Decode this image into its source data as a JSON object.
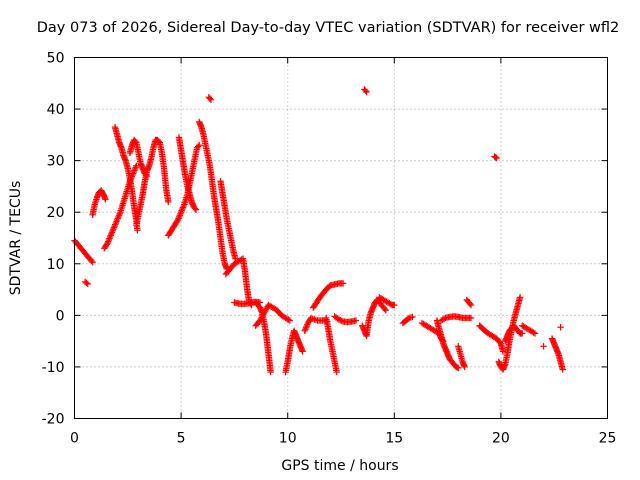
{
  "chart_data": {
    "type": "scatter",
    "title": "Day 073 of 2026, Sidereal Day-to-day VTEC variation (SDTVAR) for receiver wfl2",
    "xlabel": "GPS time / hours",
    "ylabel": "SDTVAR / TECUs",
    "xlim": [
      0,
      25
    ],
    "ylim": [
      -20,
      50
    ],
    "xticks": [
      0,
      5,
      10,
      15,
      20,
      25
    ],
    "yticks": [
      -20,
      -10,
      0,
      10,
      20,
      30,
      40,
      50
    ],
    "grid": true,
    "marker": "+",
    "series_color": "#ff0000",
    "segments": [
      [
        [
          0.0,
          14.5
        ],
        [
          0.15,
          13.8
        ],
        [
          0.3,
          13.0
        ],
        [
          0.45,
          12.3
        ],
        [
          0.6,
          11.5
        ],
        [
          0.75,
          10.8
        ],
        [
          0.85,
          10.3
        ]
      ],
      [
        [
          0.5,
          6.5
        ],
        [
          0.62,
          6.1
        ]
      ],
      [
        [
          0.85,
          19.5
        ],
        [
          0.95,
          21.5
        ],
        [
          1.05,
          22.8
        ],
        [
          1.15,
          23.8
        ],
        [
          1.25,
          24.2
        ],
        [
          1.35,
          23.5
        ],
        [
          1.45,
          22.5
        ]
      ],
      [
        [
          1.4,
          13.0
        ],
        [
          1.55,
          14.0
        ],
        [
          1.7,
          15.5
        ],
        [
          1.85,
          17.0
        ],
        [
          2.0,
          18.5
        ],
        [
          2.15,
          20.0
        ],
        [
          2.3,
          22.0
        ],
        [
          2.45,
          24.0
        ],
        [
          2.6,
          26.0
        ],
        [
          2.75,
          27.5
        ],
        [
          2.9,
          29.0
        ]
      ],
      [
        [
          1.9,
          36.5
        ],
        [
          2.0,
          35.0
        ],
        [
          2.1,
          33.5
        ],
        [
          2.2,
          32.5
        ],
        [
          2.3,
          31.0
        ],
        [
          2.4,
          30.0
        ],
        [
          2.5,
          28.5
        ],
        [
          2.6,
          26.5
        ],
        [
          2.7,
          24.0
        ],
        [
          2.8,
          21.0
        ],
        [
          2.9,
          18.5
        ],
        [
          2.95,
          16.5
        ]
      ],
      [
        [
          2.9,
          17.5
        ],
        [
          3.0,
          19.5
        ],
        [
          3.1,
          21.5
        ],
        [
          3.2,
          23.5
        ],
        [
          3.3,
          26.0
        ],
        [
          3.4,
          28.0
        ],
        [
          3.5,
          29.0
        ],
        [
          3.6,
          30.5
        ],
        [
          3.7,
          32.5
        ],
        [
          3.8,
          34.0
        ],
        [
          3.9,
          34.0
        ],
        [
          4.0,
          33.5
        ],
        [
          4.1,
          31.5
        ],
        [
          4.2,
          28.5
        ],
        [
          4.3,
          24.5
        ],
        [
          4.4,
          22.0
        ]
      ],
      [
        [
          2.6,
          31.5
        ],
        [
          2.7,
          33.0
        ],
        [
          2.8,
          34.0
        ],
        [
          2.9,
          33.5
        ],
        [
          3.0,
          31.5
        ],
        [
          3.1,
          29.5
        ],
        [
          3.2,
          28.5
        ],
        [
          3.3,
          27.5
        ],
        [
          3.4,
          27.0
        ]
      ],
      [
        [
          4.4,
          15.5
        ],
        [
          4.55,
          16.5
        ],
        [
          4.7,
          17.5
        ],
        [
          4.85,
          18.5
        ],
        [
          5.0,
          20.0
        ],
        [
          5.15,
          21.5
        ],
        [
          5.3,
          23.5
        ],
        [
          5.45,
          26.5
        ],
        [
          5.6,
          29.5
        ],
        [
          5.75,
          32.5
        ],
        [
          5.85,
          33.0
        ]
      ],
      [
        [
          4.9,
          34.5
        ],
        [
          5.0,
          32.0
        ],
        [
          5.1,
          29.5
        ],
        [
          5.2,
          27.0
        ],
        [
          5.3,
          25.0
        ],
        [
          5.4,
          23.5
        ],
        [
          5.5,
          22.0
        ],
        [
          5.6,
          21.0
        ],
        [
          5.7,
          20.5
        ]
      ],
      [
        [
          5.85,
          37.5
        ],
        [
          5.95,
          36.5
        ],
        [
          6.05,
          35.0
        ],
        [
          6.15,
          33.0
        ],
        [
          6.25,
          31.0
        ],
        [
          6.35,
          29.0
        ],
        [
          6.45,
          26.0
        ],
        [
          6.55,
          23.0
        ],
        [
          6.65,
          20.5
        ],
        [
          6.75,
          18.0
        ],
        [
          6.85,
          15.0
        ],
        [
          6.95,
          12.0
        ],
        [
          7.05,
          10.0
        ],
        [
          7.15,
          9.0
        ]
      ],
      [
        [
          6.3,
          42.3
        ],
        [
          6.4,
          41.8
        ]
      ],
      [
        [
          6.85,
          26.0
        ],
        [
          6.95,
          23.5
        ],
        [
          7.05,
          21.0
        ],
        [
          7.15,
          18.5
        ],
        [
          7.25,
          16.5
        ],
        [
          7.35,
          14.5
        ],
        [
          7.45,
          12.5
        ],
        [
          7.55,
          11.0
        ]
      ],
      [
        [
          7.1,
          8.0
        ],
        [
          7.3,
          9.0
        ],
        [
          7.5,
          10.0
        ],
        [
          7.7,
          10.5
        ],
        [
          7.9,
          11.0
        ],
        [
          8.0,
          8.5
        ],
        [
          8.1,
          5.0
        ],
        [
          8.2,
          2.5
        ],
        [
          8.3,
          2.0
        ]
      ],
      [
        [
          7.5,
          2.5
        ],
        [
          7.7,
          2.3
        ],
        [
          7.9,
          2.2
        ],
        [
          8.1,
          2.3
        ],
        [
          8.3,
          2.5
        ],
        [
          8.5,
          2.6
        ],
        [
          8.7,
          2.5
        ]
      ],
      [
        [
          8.5,
          2.5
        ],
        [
          8.7,
          1.5
        ],
        [
          8.8,
          0.5
        ],
        [
          8.9,
          -1.5
        ],
        [
          9.0,
          -4.0
        ],
        [
          9.1,
          -7.5
        ],
        [
          9.2,
          -11.0
        ]
      ],
      [
        [
          8.5,
          -2.0
        ],
        [
          8.7,
          -1.0
        ],
        [
          8.9,
          0.5
        ],
        [
          9.1,
          2.0
        ],
        [
          9.3,
          1.5
        ],
        [
          9.5,
          1.0
        ],
        [
          9.7,
          0.0
        ],
        [
          9.9,
          -0.5
        ],
        [
          10.1,
          -1.0
        ]
      ],
      [
        [
          9.9,
          -11.0
        ],
        [
          10.0,
          -9.0
        ],
        [
          10.1,
          -6.5
        ],
        [
          10.2,
          -4.5
        ],
        [
          10.3,
          -3.0
        ],
        [
          10.4,
          -4.0
        ],
        [
          10.5,
          -5.0
        ],
        [
          10.6,
          -6.0
        ],
        [
          10.7,
          -7.0
        ]
      ],
      [
        [
          10.8,
          -3.0
        ],
        [
          10.95,
          -1.5
        ],
        [
          11.1,
          -0.5
        ],
        [
          11.25,
          -0.8
        ],
        [
          11.4,
          -1.0
        ],
        [
          11.55,
          -1.0
        ],
        [
          11.7,
          -1.0
        ],
        [
          11.85,
          -1.2
        ]
      ],
      [
        [
          11.2,
          1.5
        ],
        [
          11.4,
          2.8
        ],
        [
          11.6,
          4.0
        ],
        [
          11.8,
          5.0
        ],
        [
          12.0,
          5.8
        ],
        [
          12.2,
          6.0
        ],
        [
          12.4,
          6.2
        ],
        [
          12.6,
          6.2
        ]
      ],
      [
        [
          11.8,
          -0.5
        ],
        [
          11.9,
          -2.5
        ],
        [
          12.0,
          -5.0
        ],
        [
          12.1,
          -7.0
        ],
        [
          12.2,
          -9.0
        ],
        [
          12.3,
          -11.0
        ]
      ],
      [
        [
          12.2,
          -0.2
        ],
        [
          12.4,
          -0.8
        ],
        [
          12.6,
          -1.2
        ],
        [
          12.8,
          -1.3
        ],
        [
          13.0,
          -1.2
        ],
        [
          13.2,
          -1.0
        ]
      ],
      [
        [
          13.6,
          43.8
        ],
        [
          13.7,
          43.3
        ]
      ],
      [
        [
          13.5,
          -2.0
        ],
        [
          13.6,
          -3.0
        ],
        [
          13.7,
          -4.0
        ],
        [
          13.8,
          -1.0
        ],
        [
          13.9,
          0.5
        ],
        [
          14.0,
          1.5
        ],
        [
          14.1,
          2.5
        ],
        [
          14.2,
          3.0
        ],
        [
          14.3,
          2.5
        ],
        [
          14.4,
          2.0
        ],
        [
          14.5,
          1.5
        ],
        [
          14.6,
          1.0
        ]
      ],
      [
        [
          14.3,
          3.5
        ],
        [
          14.5,
          3.0
        ],
        [
          14.7,
          2.5
        ],
        [
          14.9,
          2.0
        ],
        [
          15.0,
          2.0
        ]
      ],
      [
        [
          15.4,
          -1.5
        ],
        [
          15.55,
          -1.0
        ],
        [
          15.7,
          -0.5
        ],
        [
          15.85,
          -0.3
        ]
      ],
      [
        [
          16.3,
          -1.5
        ],
        [
          16.5,
          -2.0
        ],
        [
          16.7,
          -2.5
        ],
        [
          16.9,
          -3.0
        ],
        [
          17.1,
          -3.5
        ],
        [
          17.2,
          -4.5
        ],
        [
          17.3,
          -5.0
        ]
      ],
      [
        [
          17.0,
          -1.0
        ],
        [
          17.1,
          -2.5
        ],
        [
          17.2,
          -4.0
        ],
        [
          17.3,
          -5.5
        ],
        [
          17.4,
          -6.5
        ],
        [
          17.5,
          -7.5
        ],
        [
          17.6,
          -8.5
        ],
        [
          17.7,
          -9.0
        ],
        [
          17.8,
          -9.5
        ],
        [
          17.9,
          -10.0
        ],
        [
          18.0,
          -10.2
        ]
      ],
      [
        [
          17.2,
          -1.0
        ],
        [
          17.4,
          -0.5
        ],
        [
          17.6,
          -0.3
        ],
        [
          17.8,
          -0.2
        ],
        [
          18.0,
          -0.3
        ],
        [
          18.2,
          -0.5
        ],
        [
          18.4,
          -0.5
        ],
        [
          18.6,
          -0.5
        ]
      ],
      [
        [
          18.0,
          -6.0
        ],
        [
          18.2,
          -9.0
        ],
        [
          18.3,
          -10.0
        ]
      ],
      [
        [
          18.4,
          3.0
        ],
        [
          18.5,
          2.5
        ],
        [
          18.6,
          2.0
        ]
      ],
      [
        [
          19.0,
          -2.0
        ],
        [
          19.2,
          -2.8
        ],
        [
          19.4,
          -3.5
        ],
        [
          19.6,
          -4.0
        ],
        [
          19.8,
          -4.5
        ],
        [
          20.0,
          -5.5
        ],
        [
          20.1,
          -7.0
        ]
      ],
      [
        [
          19.7,
          30.8
        ],
        [
          19.8,
          30.5
        ]
      ],
      [
        [
          19.9,
          -9.0
        ],
        [
          20.0,
          -10.0
        ],
        [
          20.1,
          -10.5
        ],
        [
          20.2,
          -9.5
        ],
        [
          20.3,
          -7.5
        ],
        [
          20.4,
          -5.0
        ],
        [
          20.5,
          -3.0
        ],
        [
          20.6,
          -1.0
        ],
        [
          20.7,
          0.5
        ],
        [
          20.8,
          2.0
        ],
        [
          20.9,
          3.5
        ]
      ],
      [
        [
          20.2,
          -5.0
        ],
        [
          20.3,
          -4.0
        ],
        [
          20.4,
          -3.0
        ],
        [
          20.5,
          -2.5
        ],
        [
          20.6,
          -2.0
        ],
        [
          20.7,
          -2.5
        ],
        [
          20.8,
          -3.0
        ],
        [
          20.9,
          -3.5
        ],
        [
          21.0,
          -3.5
        ]
      ],
      [
        [
          21.0,
          -2.0
        ],
        [
          21.2,
          -2.5
        ],
        [
          21.4,
          -3.0
        ],
        [
          21.6,
          -3.5
        ]
      ],
      [
        [
          22.0,
          -6.0
        ]
      ],
      [
        [
          22.4,
          -4.5
        ],
        [
          22.5,
          -5.5
        ],
        [
          22.6,
          -6.5
        ],
        [
          22.7,
          -7.5
        ],
        [
          22.8,
          -9.0
        ],
        [
          22.9,
          -10.5
        ]
      ],
      [
        [
          22.8,
          -2.3
        ]
      ]
    ]
  }
}
